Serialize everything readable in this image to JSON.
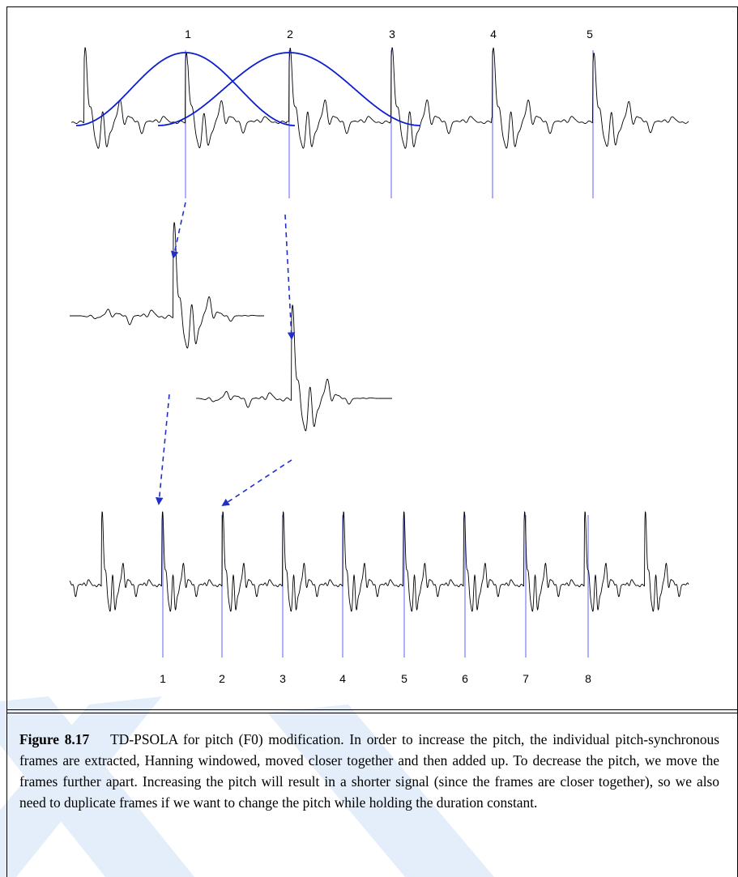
{
  "figure": {
    "label": "Figure 8.17",
    "caption": "TD-PSOLA for pitch (F0) modification. In order to increase the pitch, the individual pitch-synchronous frames are extracted, Hanning windowed, moved closer together and then added up. To decrease the pitch, we move the frames further apart. Increasing the pitch will result in a shorter signal (since the frames are closer together), so we also need to duplicate frames if we want to change the pitch while holding the duration constant."
  },
  "top_signal": {
    "pitch_mark_labels": [
      "1",
      "2",
      "3",
      "4",
      "5"
    ]
  },
  "bottom_signal": {
    "pitch_mark_labels": [
      "1",
      "2",
      "3",
      "4",
      "5",
      "6",
      "7",
      "8"
    ]
  },
  "colors": {
    "waveform": "#000000",
    "pitch_mark": "#7a7aff",
    "window_curve": "#0b1fd0",
    "arrow": "#1f2fc8",
    "watermark": "#e3eefa"
  }
}
